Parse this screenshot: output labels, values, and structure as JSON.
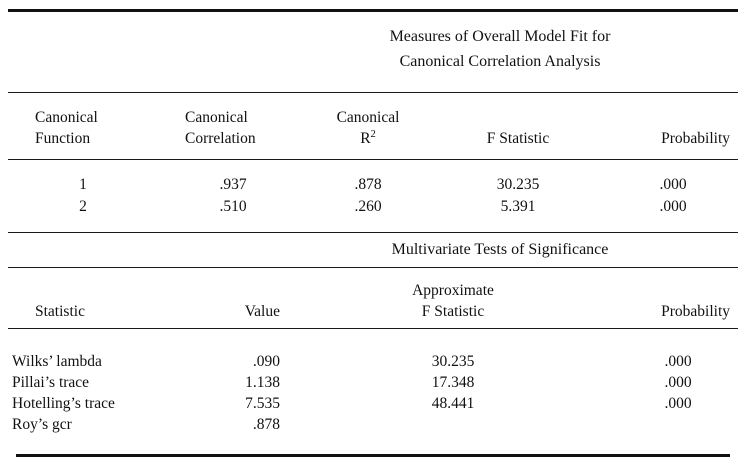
{
  "title": {
    "line1": "Measures of Overall Model Fit for",
    "line2": "Canonical Correlation Analysis"
  },
  "table1": {
    "headers": {
      "canonical_function": {
        "line1": "Canonical",
        "line2": "Function"
      },
      "canonical_correlation": {
        "line1": "Canonical",
        "line2": "Correlation"
      },
      "canonical_r2": {
        "line1": "Canonical",
        "line2_main": "R",
        "line2_sup": "2"
      },
      "f_statistic": "F Statistic",
      "probability": "Probability"
    },
    "rows": [
      {
        "function": "1",
        "correlation": ".937",
        "r2": ".878",
        "f": "30.235",
        "p": ".000"
      },
      {
        "function": "2",
        "correlation": ".510",
        "r2": ".260",
        "f": "5.391",
        "p": ".000"
      }
    ]
  },
  "subtitle": "Multivariate Tests of Significance",
  "table2": {
    "headers": {
      "statistic": "Statistic",
      "value": "Value",
      "approx_f": {
        "line1": "Approximate",
        "line2": "F Statistic"
      },
      "probability": "Probability"
    },
    "rows": [
      {
        "statistic": "Wilks’ lambda",
        "value": ".090",
        "f": "30.235",
        "p": ".000"
      },
      {
        "statistic": "Pillai’s trace",
        "value": "1.138",
        "f": "17.348",
        "p": ".000"
      },
      {
        "statistic": "Hotelling’s trace",
        "value": "7.535",
        "f": "48.441",
        "p": ".000"
      },
      {
        "statistic": "Roy’s gcr",
        "value": ".878",
        "f": "",
        "p": ""
      }
    ]
  }
}
